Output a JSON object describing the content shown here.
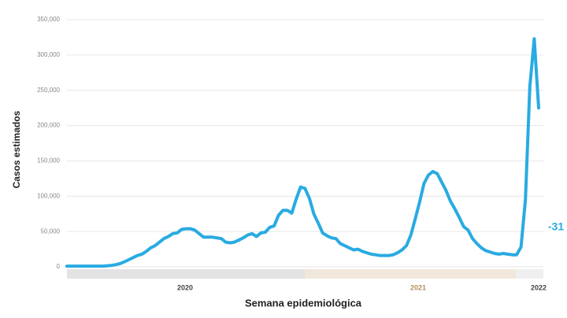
{
  "chart_data": {
    "type": "line",
    "y_label": "Casos estimados",
    "x_label": "Semana epidemiológica",
    "annotation": "-31",
    "year_labels": [
      "2020",
      "2021",
      "2022"
    ],
    "categories": [
      null,
      null,
      null,
      null,
      null,
      null,
      null,
      null,
      null,
      null,
      null,
      null,
      null,
      null,
      null,
      null,
      null,
      null,
      null,
      null,
      null,
      null,
      null,
      null,
      null,
      null,
      null,
      null,
      null,
      null,
      null,
      null,
      null,
      null,
      null,
      null,
      null,
      null,
      null,
      null,
      null,
      null,
      null,
      null,
      null,
      null,
      null,
      null,
      null,
      null,
      null,
      null,
      null,
      null,
      null,
      null,
      null,
      null,
      null,
      null,
      null,
      null,
      null,
      null,
      null,
      null,
      null,
      null,
      null,
      null,
      null,
      null,
      null,
      null,
      null,
      null,
      null,
      null,
      null,
      null,
      null,
      null,
      null,
      null,
      null,
      null,
      null,
      null,
      null,
      null,
      null,
      null,
      null,
      null,
      null,
      null,
      null,
      null,
      null,
      null,
      null,
      null,
      null,
      null,
      null,
      null,
      null,
      null
    ],
    "series": [
      {
        "color": "#29abe2",
        "values": [
          1000,
          1000,
          1000,
          1000,
          1000,
          1000,
          1000,
          1000,
          1000,
          1500,
          2000,
          3000,
          4500,
          7000,
          10000,
          13000,
          16000,
          18000,
          22000,
          27000,
          30000,
          35000,
          40000,
          43000,
          47000,
          48000,
          53000,
          54000,
          54000,
          52000,
          47000,
          42000,
          42000,
          42000,
          41000,
          40000,
          35000,
          34000,
          35000,
          38000,
          41000,
          45000,
          47000,
          43000,
          48000,
          49000,
          56000,
          58000,
          73000,
          80000,
          80000,
          76000,
          96000,
          113000,
          111000,
          97000,
          75000,
          62000,
          48000,
          44000,
          41000,
          40000,
          33000,
          30000,
          27000,
          24000,
          25000,
          22000,
          20000,
          18000,
          17000,
          16000,
          16000,
          16000,
          17000,
          20000,
          24000,
          30000,
          45000,
          68000,
          92000,
          118000,
          130000,
          135000,
          132000,
          120000,
          108000,
          93000,
          82000,
          70000,
          57000,
          52000,
          40000,
          33000,
          27000,
          23000,
          21000,
          19000,
          18000,
          19000,
          18000,
          17000,
          17000,
          28000,
          95000,
          255000,
          323000,
          225000
        ]
      }
    ],
    "ylim": [
      0,
      350000
    ],
    "yticks": [
      0,
      {
        "value": 50000,
        "label": "50,000"
      },
      {
        "value": 100000,
        "label": "100,000"
      },
      {
        "value": 150000,
        "label": "150,000"
      },
      {
        "value": 200000,
        "label": "200,000"
      },
      {
        "value": 250000,
        "label": "250,000"
      },
      {
        "value": 300000,
        "label": "300,000"
      },
      {
        "value": 350000,
        "label": "350,000"
      }
    ],
    "grid": true
  }
}
